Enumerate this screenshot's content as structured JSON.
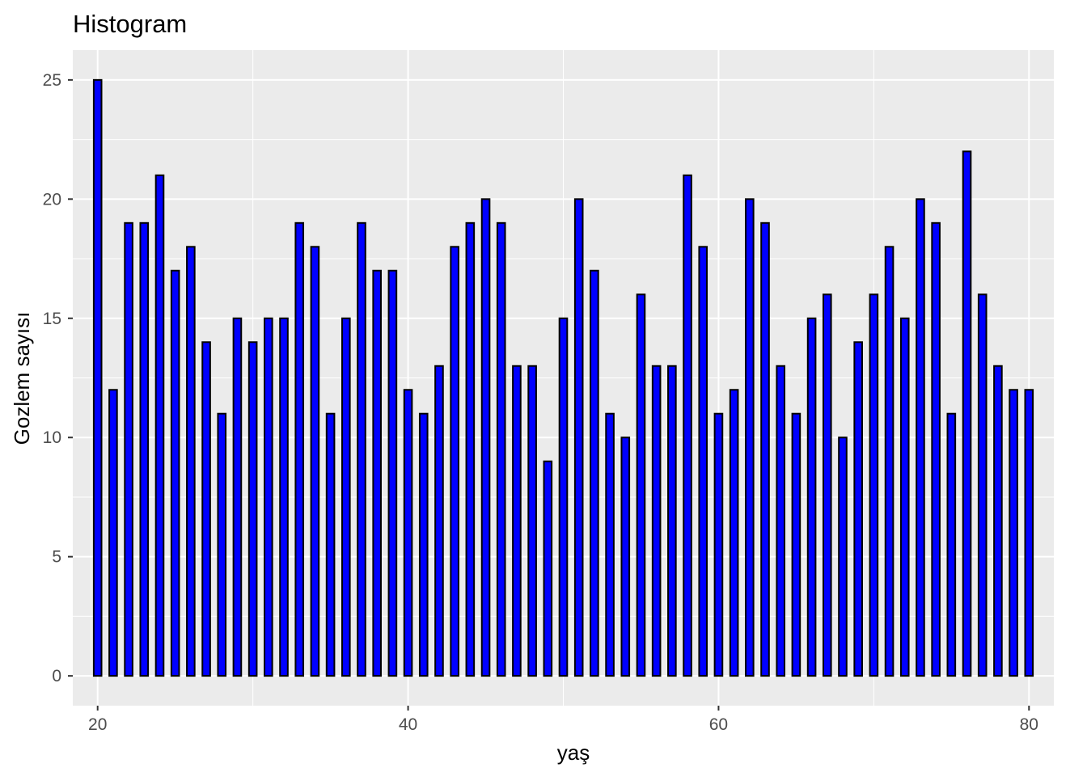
{
  "chart_data": {
    "type": "bar",
    "title": "Histogram",
    "xlabel": "yaş",
    "ylabel": "Gozlem sayısı",
    "x": [
      20,
      21,
      22,
      23,
      24,
      25,
      26,
      27,
      28,
      29,
      30,
      31,
      32,
      33,
      34,
      35,
      36,
      37,
      38,
      39,
      40,
      41,
      42,
      43,
      44,
      45,
      46,
      47,
      48,
      49,
      50,
      51,
      52,
      53,
      54,
      55,
      56,
      57,
      58,
      59,
      60,
      61,
      62,
      63,
      64,
      65,
      66,
      67,
      68,
      69,
      70,
      71,
      72,
      73,
      74,
      75,
      76,
      77,
      78,
      79,
      80
    ],
    "values": [
      25,
      12,
      19,
      19,
      21,
      17,
      18,
      14,
      11,
      15,
      14,
      15,
      15,
      19,
      18,
      11,
      15,
      19,
      17,
      17,
      12,
      11,
      13,
      18,
      19,
      20,
      19,
      13,
      13,
      9,
      15,
      20,
      17,
      11,
      10,
      16,
      13,
      13,
      21,
      18,
      11,
      12,
      20,
      19,
      13,
      11,
      15,
      16,
      10,
      14,
      16,
      18,
      15,
      20,
      19,
      11,
      22,
      16,
      13,
      12,
      12
    ],
    "xlim": [
      18.4,
      81.6
    ],
    "ylim": [
      -1.25,
      26.25
    ],
    "x_ticks": [
      "20",
      "40",
      "60",
      "80"
    ],
    "y_ticks": [
      "0",
      "5",
      "10",
      "15",
      "20",
      "25"
    ],
    "bar_fill": "#0000ff",
    "bar_outline": "#000000",
    "panel_background": "#ebebeb",
    "grid_color": "#ffffff",
    "grid": true,
    "legend": "none"
  }
}
